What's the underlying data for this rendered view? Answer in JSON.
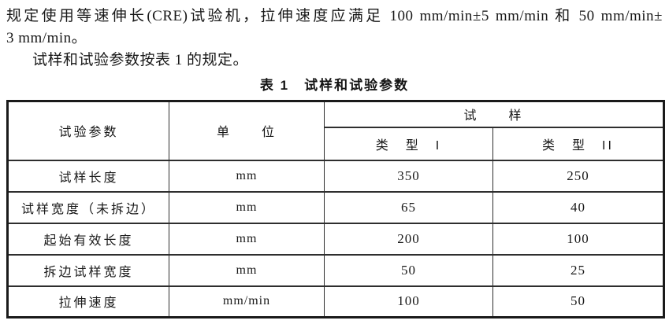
{
  "page": {
    "para1_line1": "规定使用等速伸长(CRE)试验机，拉伸速度应满足 100 mm/min±5 mm/min 和 50 mm/min±",
    "para1_line2": "3 mm/min。",
    "para2": "试样和试验参数按表 1 的规定。",
    "table_caption": "表 1　试样和试验参数"
  },
  "table": {
    "headers": {
      "param": "试验参数",
      "unit": "单　　位",
      "specimen": "试　　样",
      "type1": "类　型　I",
      "type2": "类　型　II"
    },
    "rows": [
      {
        "param": "试样长度",
        "unit": "mm",
        "type1": "350",
        "type2": "250"
      },
      {
        "param": "试样宽度（未拆边）",
        "unit": "mm",
        "type1": "65",
        "type2": "40"
      },
      {
        "param": "起始有效长度",
        "unit": "mm",
        "type1": "200",
        "type2": "100"
      },
      {
        "param": "拆边试样宽度",
        "unit": "mm",
        "type1": "50",
        "type2": "25"
      },
      {
        "param": "拉伸速度",
        "unit": "mm/min",
        "type1": "100",
        "type2": "50"
      }
    ]
  }
}
